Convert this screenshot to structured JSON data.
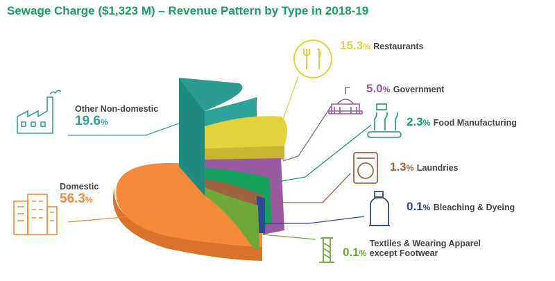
{
  "title": "Sewage Charge ($1,323 M) – Revenue Pattern by Type in 2018-19",
  "colors": {
    "title": "#1aa05a",
    "domestic": "#f58a3b",
    "other_non_domestic": "#2fa39a",
    "restaurants": "#e3d13c",
    "government": "#9a5aa0",
    "food_manufacturing": "#17a05e",
    "laundries": "#a06342",
    "bleaching_dyeing": "#2a4a9a",
    "textiles": "#6fa83a"
  },
  "legend_icons": {
    "domestic": "apartment-building-icon",
    "other_non_domestic": "factory-icon",
    "restaurants": "fork-and-knife-plate-icon",
    "government": "government-building-icon",
    "food_manufacturing": "bottling-conveyor-icon",
    "laundries": "washing-machine-icon",
    "bleaching_dyeing": "detergent-bottle-icon",
    "textiles": "thread-spool-icon"
  },
  "chart_data": {
    "type": "pie",
    "style": "3d-exploded",
    "title": "Sewage Charge ($1,323 M) – Revenue Pattern by Type in 2018-19",
    "unit": "%",
    "categories": [
      "Domestic",
      "Other Non-domestic",
      "Restaurants",
      "Government",
      "Food Manufacturing",
      "Laundries",
      "Bleaching & Dyeing",
      "Textiles & Wearing Apparel except Footwear"
    ],
    "values": [
      56.3,
      19.6,
      15.3,
      5.0,
      2.3,
      1.3,
      0.1,
      0.1
    ],
    "labels": [
      {
        "key": "domestic",
        "name": "Domestic",
        "pct": "56.3",
        "unit": "%"
      },
      {
        "key": "other_non_domestic",
        "name": "Other Non-domestic",
        "pct": "19.6",
        "unit": "%"
      },
      {
        "key": "restaurants",
        "name": "Restaurants",
        "pct": "15.3",
        "unit": "%"
      },
      {
        "key": "government",
        "name": "Government",
        "pct": "5.0",
        "unit": "%"
      },
      {
        "key": "food_manufacturing",
        "name": "Food Manufacturing",
        "pct": "2.3",
        "unit": "%"
      },
      {
        "key": "laundries",
        "name": "Laundries",
        "pct": "1.3",
        "unit": "%"
      },
      {
        "key": "bleaching_dyeing",
        "name": "Bleaching & Dyeing",
        "pct": "0.1",
        "unit": "%"
      },
      {
        "key": "textiles",
        "name": "Textiles & Wearing Apparel except Footwear",
        "name_lines": [
          "Textiles & Wearing Apparel",
          "except Footwear"
        ],
        "pct": "0.1",
        "unit": "%"
      }
    ]
  }
}
